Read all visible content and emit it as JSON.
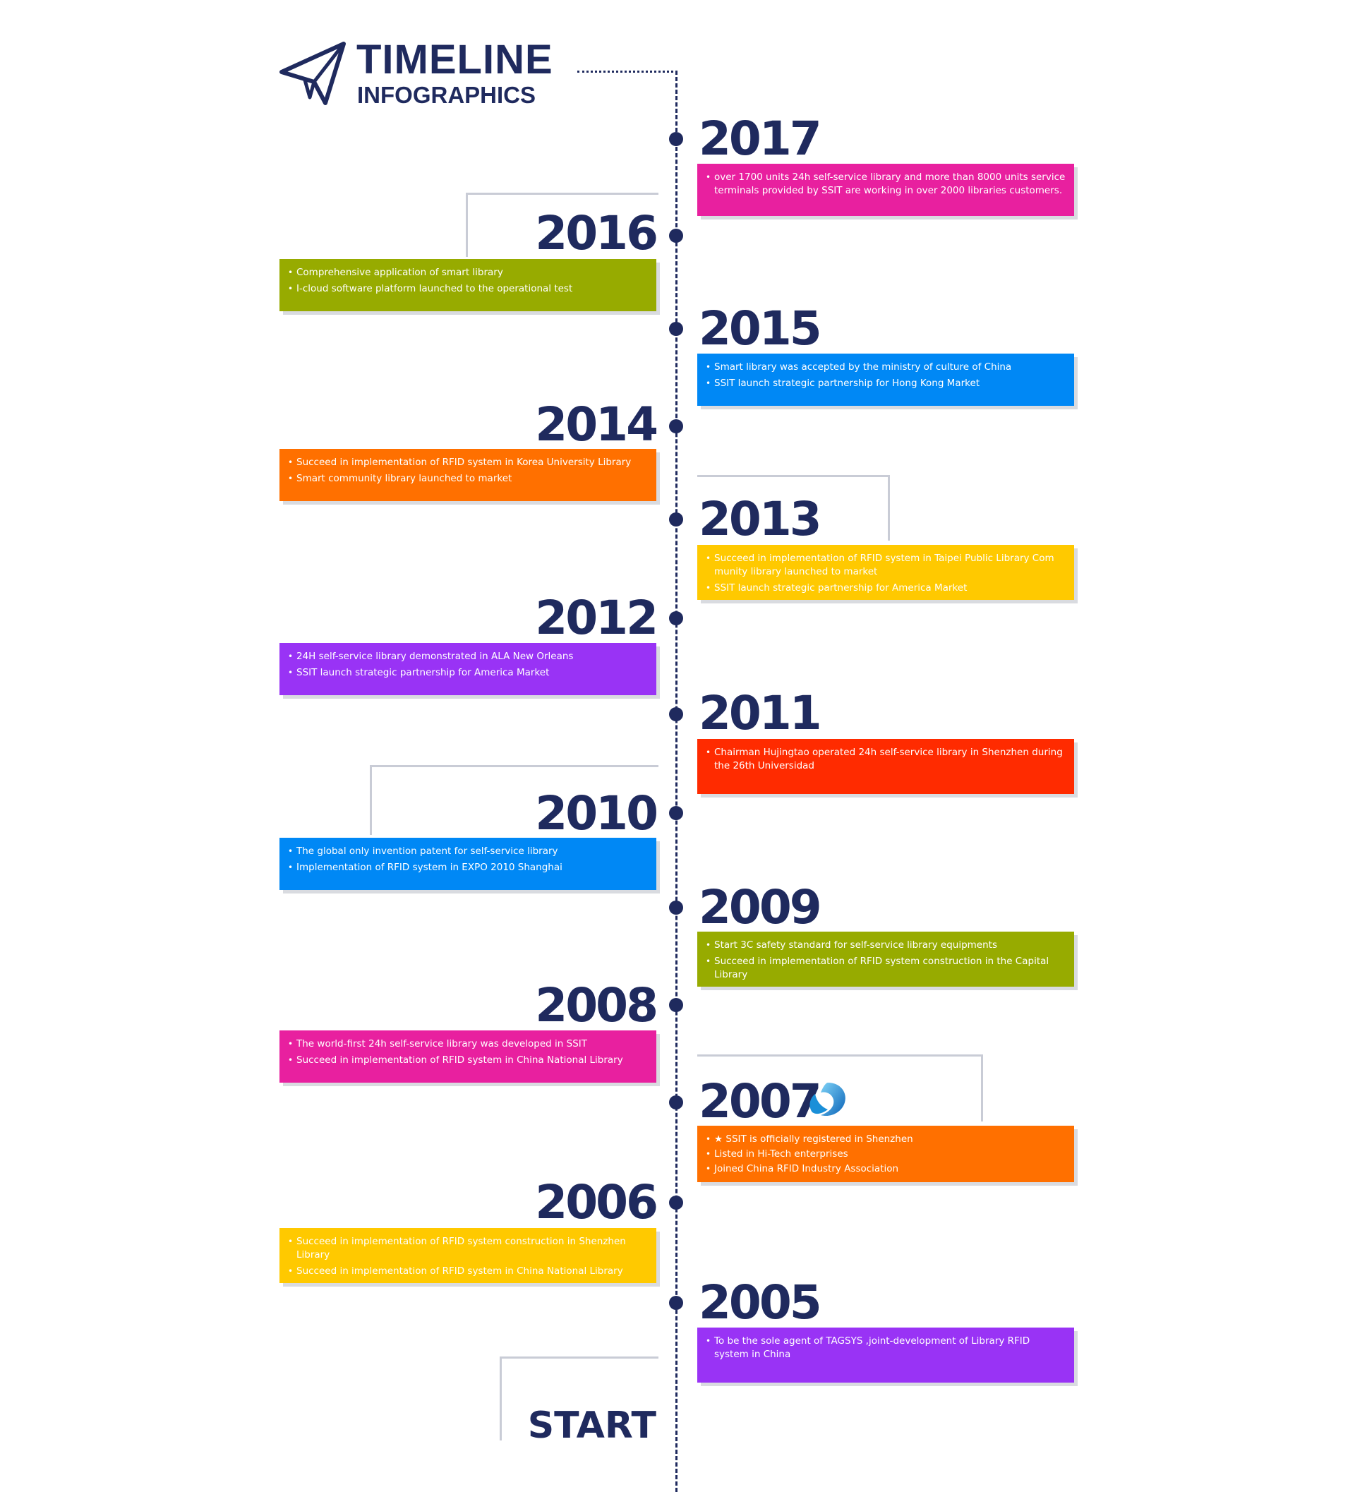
{
  "header": {
    "title": "TIMELINE",
    "subtitle": "INFOGRAPHICS"
  },
  "colors": {
    "navy": "#1f2a5e",
    "magenta": "#e8209f",
    "olive": "#97ab00",
    "blue": "#0088f5",
    "orange": "#ff7000",
    "yellow": "#ffc900",
    "purple": "#9933f5",
    "red": "#ff2b00"
  },
  "entries": [
    {
      "year": "2017",
      "color": "magenta",
      "items": [
        "over 1700 units 24h self-service library and more than 8000 units service terminals provided by SSIT are working in over 2000 libraries customers."
      ]
    },
    {
      "year": "2016",
      "color": "olive",
      "items": [
        "Comprehensive application of smart library",
        "I-cloud software platform launched to the operational test"
      ]
    },
    {
      "year": "2015",
      "color": "blue",
      "items": [
        "Smart library was accepted by the ministry of culture of China",
        "SSIT launch strategic partnership for Hong Kong Market"
      ]
    },
    {
      "year": "2014",
      "color": "orange",
      "items": [
        "Succeed in implementation of RFID system in  Korea University Library",
        "Smart community library launched to market"
      ]
    },
    {
      "year": "2013",
      "color": "yellow",
      "items": [
        "Succeed in implementation of RFID system in Taipei Public Library  Com munity library launched to market",
        "SSIT launch strategic partnership for America Market"
      ]
    },
    {
      "year": "2012",
      "color": "purple",
      "items": [
        "24H self-service library demonstrated in ALA New Orleans",
        "SSIT launch strategic partnership for America Market"
      ]
    },
    {
      "year": "2011",
      "color": "red",
      "items": [
        "Chairman Hujingtao operated 24h self-service library in Shenzhen during  the  26th Universidad"
      ]
    },
    {
      "year": "2010",
      "color": "blue",
      "items": [
        "The global only invention patent for self-service library",
        "Implementation of RFID system in EXPO 2010 Shanghai"
      ]
    },
    {
      "year": "2009",
      "color": "olive",
      "items": [
        "Start  3C  safety standard for self-service library equipments",
        "Succeed in implementation of RFID system construction in the Capital Library"
      ]
    },
    {
      "year": "2008",
      "color": "magenta",
      "items": [
        "The world-first 24h self-service library was developed in SSIT",
        "Succeed in implementation of RFID system in China National Library"
      ]
    },
    {
      "year": "2007",
      "color": "orange",
      "items": [
        "★ SSIT is officially registered in Shenzhen",
        "Listed in Hi-Tech enterprises",
        "Joined China RFID Industry Association"
      ]
    },
    {
      "year": "2006",
      "color": "yellow",
      "items": [
        "Succeed in implementation of RFID system construction in Shenzhen Library",
        "Succeed in implementation of RFID system in China National Library"
      ]
    },
    {
      "year": "2005",
      "color": "purple",
      "items": [
        "To be the sole agent of TAGSYS ,joint-development of Library RFID system in China"
      ]
    }
  ],
  "footer": {
    "start_label": "START"
  }
}
